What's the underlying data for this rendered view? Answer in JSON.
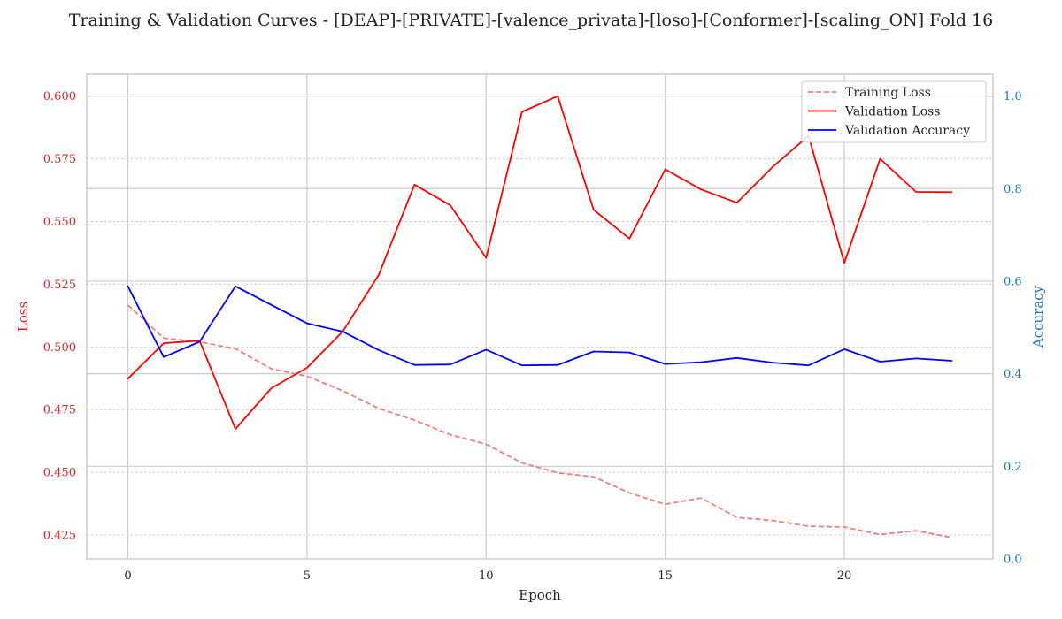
{
  "chart_data": {
    "type": "line",
    "title": "Training & Validation Curves - [DEAP]-[PRIVATE]-[valence_privata]-[loso]-[Conformer]-[scaling_ON] Fold 16",
    "xlabel": "Epoch",
    "ylabel_left": "Loss",
    "ylabel_right": "Accuracy",
    "xlim": [
      -1.15,
      24.15
    ],
    "ylim_left": [
      0.4155,
      0.6087
    ],
    "ylim_right": [
      0.0,
      1.047
    ],
    "x_ticks": [
      0,
      5,
      10,
      15,
      20
    ],
    "y_ticks_left": [
      0.425,
      0.45,
      0.475,
      0.5,
      0.525,
      0.55,
      0.575,
      0.6
    ],
    "y_ticks_left_labels": [
      "0.425",
      "0.450",
      "0.475",
      "0.500",
      "0.525",
      "0.550",
      "0.575",
      "0.600"
    ],
    "y_ticks_right": [
      0.0,
      0.2,
      0.4,
      0.6,
      0.8,
      1.0
    ],
    "y_ticks_right_labels": [
      "0.0",
      "0.2",
      "0.4",
      "0.6",
      "0.8",
      "1.0"
    ],
    "x": [
      0,
      1,
      2,
      3,
      4,
      5,
      6,
      7,
      8,
      9,
      10,
      11,
      12,
      13,
      14,
      15,
      16,
      17,
      18,
      19,
      20,
      21,
      22,
      23
    ],
    "series": [
      {
        "name": "Training Loss",
        "axis": "left",
        "color": "#f08080",
        "style": "dashed",
        "values": [
          0.5167,
          0.5035,
          0.502,
          0.4993,
          0.4913,
          0.4883,
          0.4825,
          0.4755,
          0.4708,
          0.465,
          0.4612,
          0.4538,
          0.4498,
          0.4482,
          0.4418,
          0.4373,
          0.4398,
          0.432,
          0.4308,
          0.4285,
          0.4282,
          0.4252,
          0.4267,
          0.424
        ]
      },
      {
        "name": "Validation Loss",
        "axis": "left",
        "color": "#ff0000",
        "style": "solid",
        "values": [
          0.4873,
          0.5015,
          0.5025,
          0.4673,
          0.4835,
          0.4917,
          0.5062,
          0.5287,
          0.5647,
          0.5565,
          0.5355,
          0.5937,
          0.6,
          0.5547,
          0.5432,
          0.5708,
          0.5628,
          0.5575,
          0.5718,
          0.5842,
          0.5335,
          0.575,
          0.5618,
          0.5617
        ]
      },
      {
        "name": "Validation Accuracy",
        "axis": "right",
        "color": "#0000ff",
        "style": "solid",
        "values": [
          0.589,
          0.436,
          0.469,
          0.589,
          0.549,
          0.509,
          0.491,
          0.451,
          0.419,
          0.42,
          0.452,
          0.418,
          0.419,
          0.448,
          0.446,
          0.421,
          0.425,
          0.434,
          0.424,
          0.418,
          0.453,
          0.426,
          0.433,
          0.428
        ]
      }
    ],
    "legend_position": "top-right",
    "grid": true,
    "colors": {
      "left_axis": "#d62728",
      "right_axis": "#1f77b4",
      "grid": "#cccccc",
      "frame": "#cccccc"
    }
  }
}
